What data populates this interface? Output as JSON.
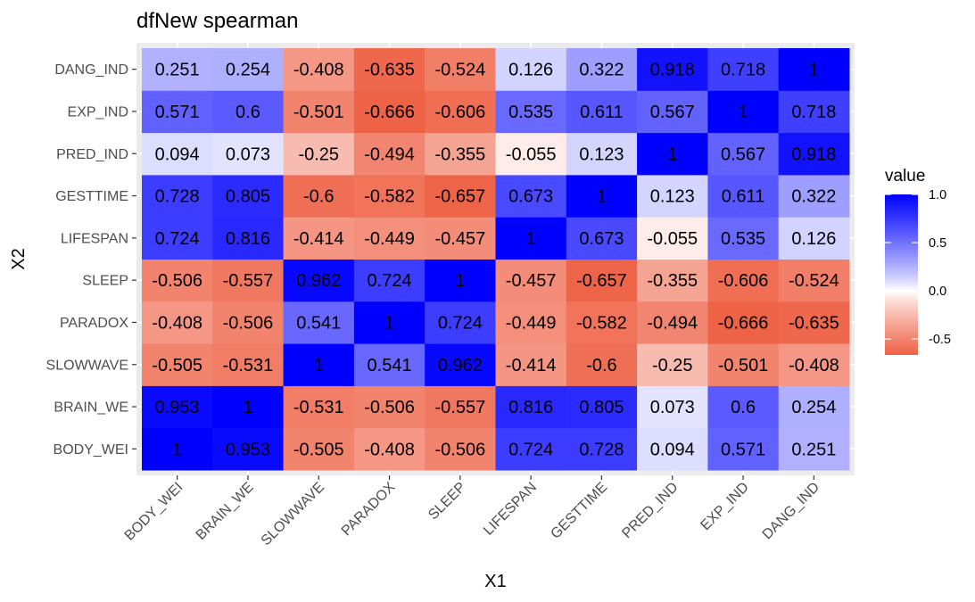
{
  "chart_data": {
    "type": "heatmap",
    "title": "dfNew spearman",
    "xlabel": "X1",
    "ylabel": "X2",
    "categories": [
      "BODY_WEI",
      "BRAIN_WE",
      "SLOWWAVE",
      "PARADOX",
      "SLEEP",
      "LIFESPAN",
      "GESTTIME",
      "PRED_IND",
      "EXP_IND",
      "DANG_IND"
    ],
    "matrix": [
      [
        1,
        0.953,
        -0.505,
        -0.408,
        -0.506,
        0.724,
        0.728,
        0.094,
        0.571,
        0.251
      ],
      [
        0.953,
        1,
        -0.531,
        -0.506,
        -0.557,
        0.816,
        0.805,
        0.073,
        0.6,
        0.254
      ],
      [
        -0.505,
        -0.531,
        1,
        0.541,
        0.962,
        -0.414,
        -0.6,
        -0.25,
        -0.501,
        -0.408
      ],
      [
        -0.408,
        -0.506,
        0.541,
        1,
        0.724,
        -0.449,
        -0.582,
        -0.494,
        -0.666,
        -0.635
      ],
      [
        -0.506,
        -0.557,
        0.962,
        0.724,
        1,
        -0.457,
        -0.657,
        -0.355,
        -0.606,
        -0.524
      ],
      [
        0.724,
        0.816,
        -0.414,
        -0.449,
        -0.457,
        1,
        0.673,
        -0.055,
        0.535,
        0.126
      ],
      [
        0.728,
        0.805,
        -0.6,
        -0.582,
        -0.657,
        0.673,
        1,
        0.123,
        0.611,
        0.322
      ],
      [
        0.094,
        0.073,
        -0.25,
        -0.494,
        -0.355,
        -0.055,
        0.123,
        1,
        0.567,
        0.918
      ],
      [
        0.571,
        0.6,
        -0.501,
        -0.666,
        -0.606,
        0.535,
        0.611,
        0.567,
        1,
        0.718
      ],
      [
        0.251,
        0.254,
        -0.408,
        -0.635,
        -0.524,
        0.126,
        0.322,
        0.918,
        0.718,
        1
      ]
    ],
    "cell_labels": [
      [
        "1",
        "0.953",
        "-0.505",
        "-0.408",
        "-0.506",
        "0.724",
        "0.728",
        "0.094",
        "0.571",
        "0.251"
      ],
      [
        "0.953",
        "1",
        "-0.531",
        "-0.506",
        "-0.557",
        "0.816",
        "0.805",
        "0.073",
        "0.6",
        "0.254"
      ],
      [
        "-0.505",
        "-0.531",
        "1",
        "0.541",
        "0.962",
        "-0.414",
        "-0.6",
        "-0.25",
        "-0.501",
        "-0.408"
      ],
      [
        "-0.408",
        "-0.506",
        "0.541",
        "1",
        "0.724",
        "-0.449",
        "-0.582",
        "-0.494",
        "-0.666",
        "-0.635"
      ],
      [
        "-0.506",
        "-0.557",
        "0.962",
        "0.724",
        "1",
        "-0.457",
        "-0.657",
        "-0.355",
        "-0.606",
        "-0.524"
      ],
      [
        "0.724",
        "0.816",
        "-0.414",
        "-0.449",
        "-0.457",
        "1",
        "0.673",
        "-0.055",
        "0.535",
        "0.126"
      ],
      [
        "0.728",
        "0.805",
        "-0.6",
        "-0.582",
        "-0.657",
        "0.673",
        "1",
        "0.123",
        "0.611",
        "0.322"
      ],
      [
        "0.094",
        "0.073",
        "-0.25",
        "-0.494",
        "-0.355",
        "-0.055",
        "0.123",
        "1",
        "0.567",
        "0.918"
      ],
      [
        "0.571",
        "0.6",
        "-0.501",
        "-0.666",
        "-0.606",
        "0.535",
        "0.611",
        "0.567",
        "1",
        "0.718"
      ],
      [
        "0.251",
        "0.254",
        "-0.408",
        "-0.635",
        "-0.524",
        "0.126",
        "0.322",
        "0.918",
        "0.718",
        "1"
      ]
    ],
    "color_scale": {
      "low": "#EE6246",
      "mid": "#FFFFFF",
      "high": "#0000FF",
      "midpoint": 0,
      "limits": [
        -0.666,
        1
      ]
    },
    "legend": {
      "title": "value",
      "ticks": [
        1.0,
        0.5,
        0.0,
        -0.5
      ],
      "tick_labels": [
        "1.0",
        "0.5",
        "0.0",
        "-0.5"
      ],
      "placement": "right"
    },
    "panel_background": "#EBEBEB",
    "grid": true
  }
}
